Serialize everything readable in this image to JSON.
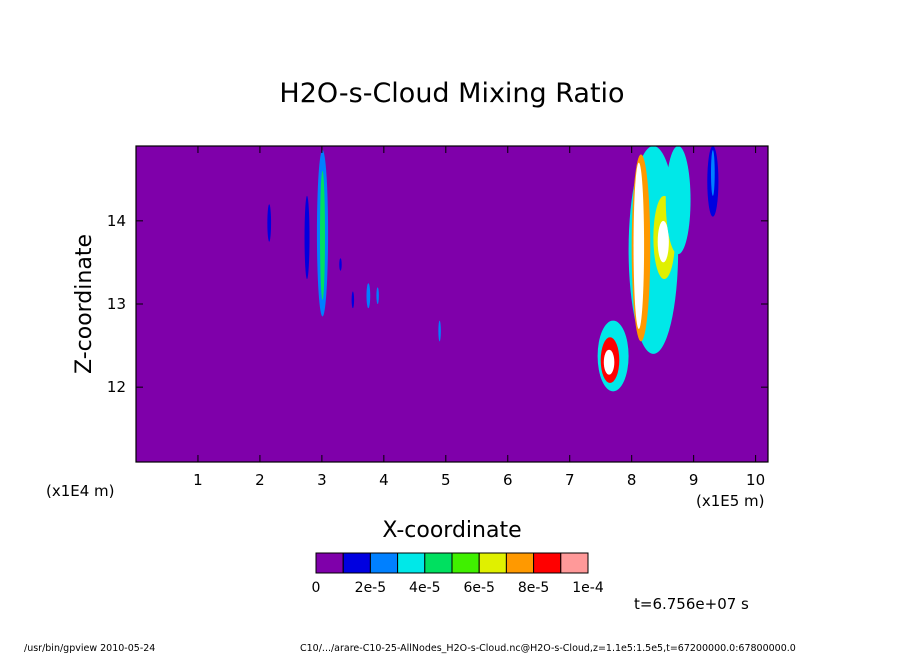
{
  "chart_data": {
    "type": "heatmap",
    "title": "H2O-s-Cloud Mixing Ratio",
    "xlabel": "X-coordinate",
    "ylabel": "Z-coordinate",
    "x_multiplier_left": "(x1E4 m)",
    "x_multiplier_right": "(x1E5 m)",
    "xlim": [
      0,
      10.2
    ],
    "ylim": [
      11.1,
      14.9
    ],
    "x_ticks": [
      1,
      2,
      3,
      4,
      5,
      6,
      7,
      8,
      9,
      10
    ],
    "y_ticks": [
      12,
      13,
      14
    ],
    "background_color": "#7f00aa",
    "colorbar": {
      "colors": [
        "#7f00aa",
        "#0000e0",
        "#0080ff",
        "#00e8e8",
        "#00e060",
        "#40f000",
        "#e0f000",
        "#ff9900",
        "#ff0000",
        "#ff9999"
      ],
      "tick_labels": [
        "0",
        "2e-5",
        "4e-5",
        "6e-5",
        "8e-5",
        "1e-4"
      ],
      "over_color": "#ffffff"
    },
    "features": [
      {
        "name": "thin-plume-a",
        "x": [
          2.12,
          2.18
        ],
        "z": [
          13.75,
          14.2
        ],
        "level": 1
      },
      {
        "name": "thin-plume-b",
        "x": [
          2.72,
          2.8
        ],
        "z": [
          13.3,
          14.3
        ],
        "level": 1
      },
      {
        "name": "column-main",
        "x": [
          2.92,
          3.1
        ],
        "z": [
          12.85,
          14.85
        ],
        "level": 2
      },
      {
        "name": "column-core",
        "x": [
          2.97,
          3.05
        ],
        "z": [
          13.05,
          14.6
        ],
        "level": 4
      },
      {
        "name": "streak-a",
        "x": [
          3.28,
          3.32
        ],
        "z": [
          13.4,
          13.55
        ],
        "level": 1
      },
      {
        "name": "streak-b",
        "x": [
          3.48,
          3.52
        ],
        "z": [
          12.95,
          13.15
        ],
        "level": 1
      },
      {
        "name": "streak-c",
        "x": [
          3.72,
          3.78
        ],
        "z": [
          12.95,
          13.25
        ],
        "level": 2
      },
      {
        "name": "streak-d",
        "x": [
          3.88,
          3.92
        ],
        "z": [
          13.0,
          13.2
        ],
        "level": 2
      },
      {
        "name": "streak-e",
        "x": [
          4.88,
          4.92
        ],
        "z": [
          12.55,
          12.8
        ],
        "level": 2
      },
      {
        "name": "cloud-blob-outer",
        "x": [
          7.45,
          7.95
        ],
        "z": [
          11.95,
          12.8
        ],
        "level": 3
      },
      {
        "name": "cloud-blob-inner",
        "x": [
          7.5,
          7.8
        ],
        "z": [
          12.05,
          12.6
        ],
        "level": 8
      },
      {
        "name": "cloud-blob-peak",
        "x": [
          7.55,
          7.72
        ],
        "z": [
          12.15,
          12.45
        ],
        "level": 11
      },
      {
        "name": "tower-outer",
        "x": [
          7.95,
          8.75
        ],
        "z": [
          12.4,
          14.9
        ],
        "level": 3
      },
      {
        "name": "tower-mid",
        "x": [
          8.0,
          8.3
        ],
        "z": [
          12.55,
          14.8
        ],
        "level": 7
      },
      {
        "name": "tower-core",
        "x": [
          8.03,
          8.2
        ],
        "z": [
          12.7,
          14.7
        ],
        "level": 11
      },
      {
        "name": "tower-side",
        "x": [
          8.35,
          8.7
        ],
        "z": [
          13.3,
          14.3
        ],
        "level": 6
      },
      {
        "name": "tower-side-core",
        "x": [
          8.42,
          8.6
        ],
        "z": [
          13.5,
          14.0
        ],
        "level": 11
      },
      {
        "name": "tail-a",
        "x": [
          8.55,
          8.95
        ],
        "z": [
          13.6,
          14.9
        ],
        "level": 3
      },
      {
        "name": "right-column",
        "x": [
          9.22,
          9.4
        ],
        "z": [
          14.05,
          14.9
        ],
        "level": 1
      },
      {
        "name": "right-column-core",
        "x": [
          9.28,
          9.34
        ],
        "z": [
          14.3,
          14.85
        ],
        "level": 2
      }
    ]
  },
  "time_label": "t=6.756e+07 s",
  "footer": {
    "left": "/usr/bin/gpview  2010-05-24",
    "right": "C10/.../arare-C10-25-AllNodes_H2O-s-Cloud.nc@H2O-s-Cloud,z=1.1e5:1.5e5,t=67200000.0:67800000.0"
  }
}
